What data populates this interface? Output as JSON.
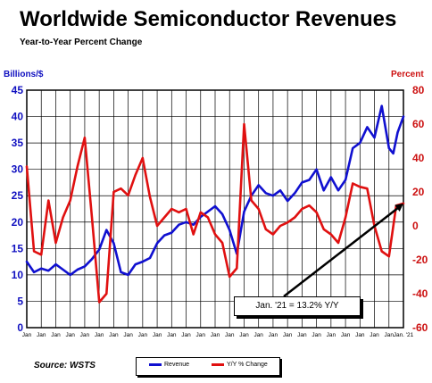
{
  "chart_data": {
    "type": "line",
    "title": "Worldwide Semiconductor Revenues",
    "subtitle": "Year-to-Year Percent Change",
    "y_left_label": "Billions/$",
    "y_right_label": "Percent",
    "y_left_ticks": [
      0,
      5,
      10,
      15,
      20,
      25,
      30,
      35,
      40,
      45
    ],
    "y_right_ticks": [
      -60,
      -40,
      -20,
      0,
      20,
      40,
      60,
      80
    ],
    "ylim_left": [
      0,
      45
    ],
    "ylim_right": [
      -60,
      80
    ],
    "x_tick_labels": [
      "Jan",
      "Jan",
      "Jan",
      "Jan",
      "Jan",
      "Jan",
      "Jan",
      "Jan",
      "Jan",
      "Jan",
      "Jan",
      "Jan",
      "Jan",
      "Jan",
      "Jan",
      "Jan",
      "Jan",
      "Jan",
      "Jan",
      "Jan",
      "Jan",
      "Jan",
      "Jan",
      "Jan",
      "Jan",
      "Jan",
      "Jan. '21"
    ],
    "grid": true,
    "legend_position": "bottom-center",
    "series": [
      {
        "name": "Revenue",
        "axis": "left",
        "color": "#1010d0",
        "x": [
          0,
          0.5,
          1,
          1.5,
          2,
          2.5,
          3,
          3.5,
          4,
          4.5,
          5,
          5.5,
          6,
          6.5,
          7,
          7.5,
          8,
          8.5,
          9,
          9.5,
          10,
          10.5,
          11,
          11.5,
          12,
          12.5,
          13,
          13.5,
          14,
          14.5,
          15,
          15.5,
          16,
          16.5,
          17,
          17.5,
          18,
          18.5,
          19,
          19.5,
          20,
          20.5,
          21,
          21.5,
          22,
          22.5,
          23,
          23.5,
          24,
          24.5,
          25,
          25.3,
          25.6,
          26
        ],
        "y": [
          12.5,
          10.5,
          11.2,
          10.8,
          12,
          11,
          10,
          11,
          11.6,
          13,
          14.8,
          18.5,
          16,
          10.5,
          10,
          12,
          12.5,
          13.2,
          16,
          17.5,
          18,
          19.5,
          20,
          19.5,
          21,
          22,
          23,
          21.5,
          18.5,
          14,
          22,
          25,
          27,
          25.5,
          25,
          26,
          24,
          25.5,
          27.5,
          28,
          30,
          26,
          28.5,
          26,
          28,
          34,
          35,
          38,
          36,
          42,
          34,
          33,
          37,
          40
        ]
      },
      {
        "name": "Y/Y % Change",
        "axis": "right",
        "color": "#e01010",
        "x": [
          0,
          0.5,
          1,
          1.5,
          2,
          2.5,
          3,
          3.5,
          4,
          4.5,
          5,
          5.5,
          6,
          6.5,
          7,
          7.5,
          8,
          8.5,
          9,
          9.5,
          10,
          10.5,
          11,
          11.5,
          12,
          12.5,
          13,
          13.5,
          14,
          14.5,
          15,
          15.5,
          16,
          16.5,
          17,
          17.5,
          18,
          18.5,
          19,
          19.5,
          20,
          20.5,
          21,
          21.5,
          22,
          22.5,
          23,
          23.5,
          24,
          24.5,
          25,
          25.5,
          26
        ],
        "y": [
          35,
          -15,
          -17,
          15,
          -10,
          5,
          15,
          35,
          52,
          5,
          -45,
          -40,
          20,
          22,
          18,
          30,
          40,
          17,
          0,
          5,
          10,
          8,
          10,
          -5,
          8,
          5,
          -5,
          -10,
          -30,
          -25,
          60,
          15,
          10,
          -2,
          -5,
          0,
          2,
          5,
          10,
          12,
          8,
          -2,
          -5,
          -10,
          5,
          25,
          23,
          22,
          0,
          -15,
          -18,
          12,
          13.2
        ]
      }
    ],
    "annotation": "Jan. '21 = 13.2% Y/Y",
    "source": "Source: WSTS",
    "legend": [
      "Revenue",
      "Y/Y % Change"
    ]
  }
}
